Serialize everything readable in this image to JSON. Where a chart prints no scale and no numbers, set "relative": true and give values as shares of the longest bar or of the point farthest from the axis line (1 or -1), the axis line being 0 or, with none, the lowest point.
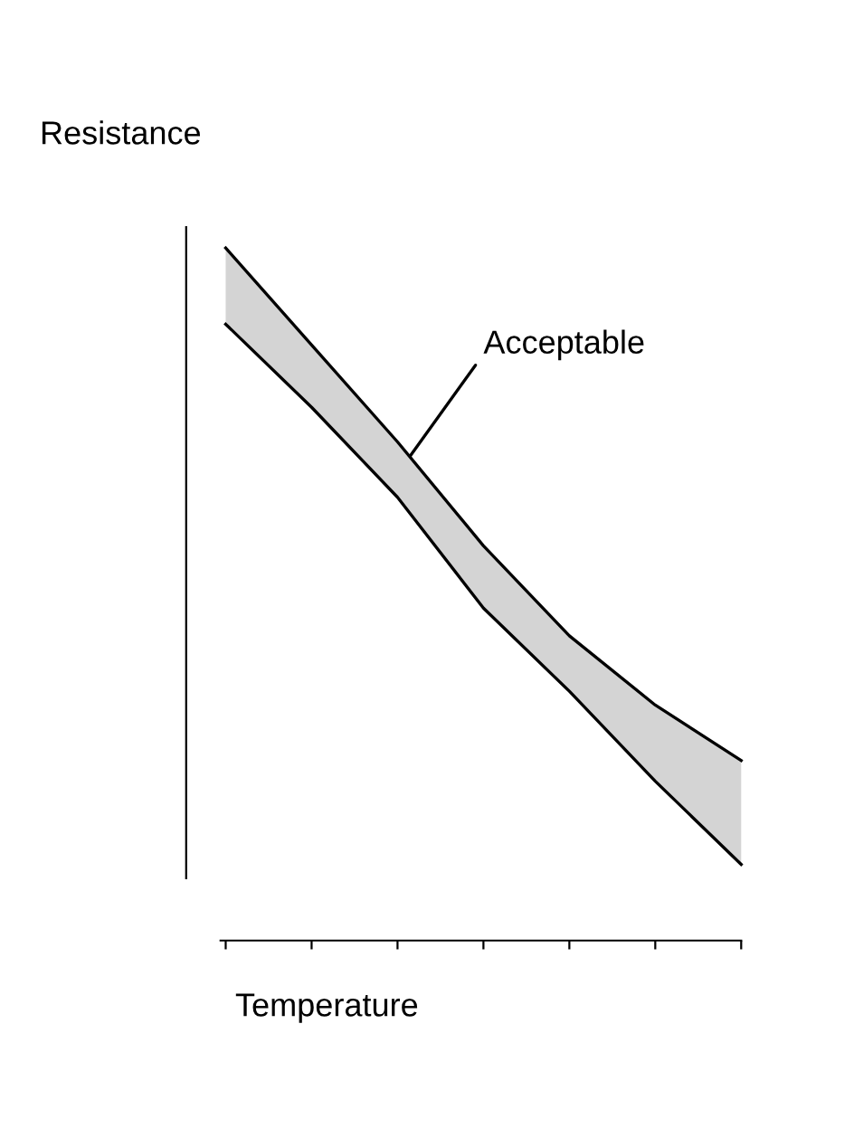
{
  "chart_data": {
    "type": "line",
    "relative": true,
    "xlabel": "Temperature",
    "ylabel": "Resistance",
    "tick_labels": false,
    "grid": false,
    "legend": false,
    "categories": [
      null,
      null,
      null,
      null,
      null,
      null,
      null
    ],
    "series": [
      {
        "color": "#000000",
        "values": [
          1,
          0.86,
          0.72,
          0.57,
          0.44,
          0.34,
          0.26
        ],
        "lower": [
          0.89,
          0.77,
          0.64,
          0.48,
          0.36,
          0.23,
          0.11
        ],
        "upper": [
          1,
          0.86,
          0.72,
          0.57,
          0.44,
          0.34,
          0.26
        ]
      },
      {
        "color": "#000000",
        "values": [
          0.89,
          0.77,
          0.64,
          0.48,
          0.36,
          0.23,
          0.11
        ]
      }
    ],
    "annotations": [
      "Acceptable"
    ]
  }
}
